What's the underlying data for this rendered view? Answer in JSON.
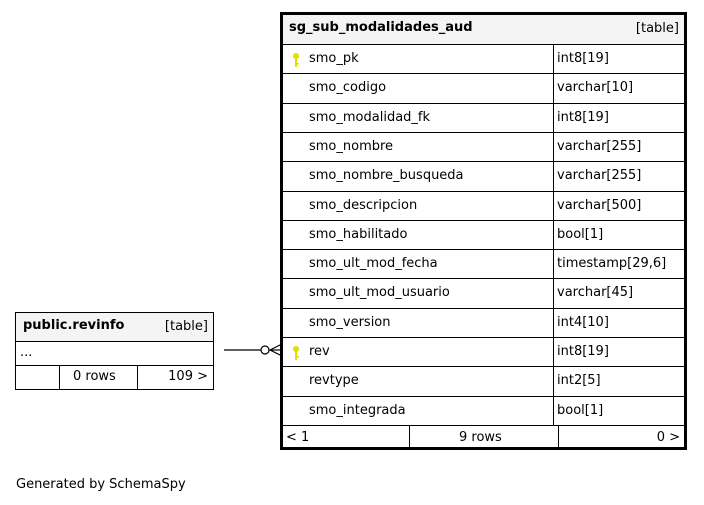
{
  "main_table": {
    "name": "sg_sub_modalidades_aud",
    "kind": "[table]",
    "columns": [
      {
        "name": "smo_pk",
        "type": "int8[19]",
        "key": true
      },
      {
        "name": "smo_codigo",
        "type": "varchar[10]",
        "key": false
      },
      {
        "name": "smo_modalidad_fk",
        "type": "int8[19]",
        "key": false
      },
      {
        "name": "smo_nombre",
        "type": "varchar[255]",
        "key": false
      },
      {
        "name": "smo_nombre_busqueda",
        "type": "varchar[255]",
        "key": false
      },
      {
        "name": "smo_descripcion",
        "type": "varchar[500]",
        "key": false
      },
      {
        "name": "smo_habilitado",
        "type": "bool[1]",
        "key": false
      },
      {
        "name": "smo_ult_mod_fecha",
        "type": "timestamp[29,6]",
        "key": false
      },
      {
        "name": "smo_ult_mod_usuario",
        "type": "varchar[45]",
        "key": false
      },
      {
        "name": "smo_version",
        "type": "int4[10]",
        "key": false
      },
      {
        "name": "rev",
        "type": "int8[19]",
        "key": true
      },
      {
        "name": "revtype",
        "type": "int2[5]",
        "key": false
      },
      {
        "name": "smo_integrada",
        "type": "bool[1]",
        "key": false
      }
    ],
    "footer": {
      "parents": "< 1",
      "rows": "9 rows",
      "children": "0 >"
    }
  },
  "ref_table": {
    "name": "public.revinfo",
    "kind": "[table]",
    "ellipsis": "...",
    "footer": {
      "parents": "",
      "rows": "0 rows",
      "children": "109 >"
    }
  },
  "footer_text": "Generated by SchemaSpy",
  "colors": {
    "key": "#e0e000",
    "header_bg": "#f4f4f4"
  }
}
